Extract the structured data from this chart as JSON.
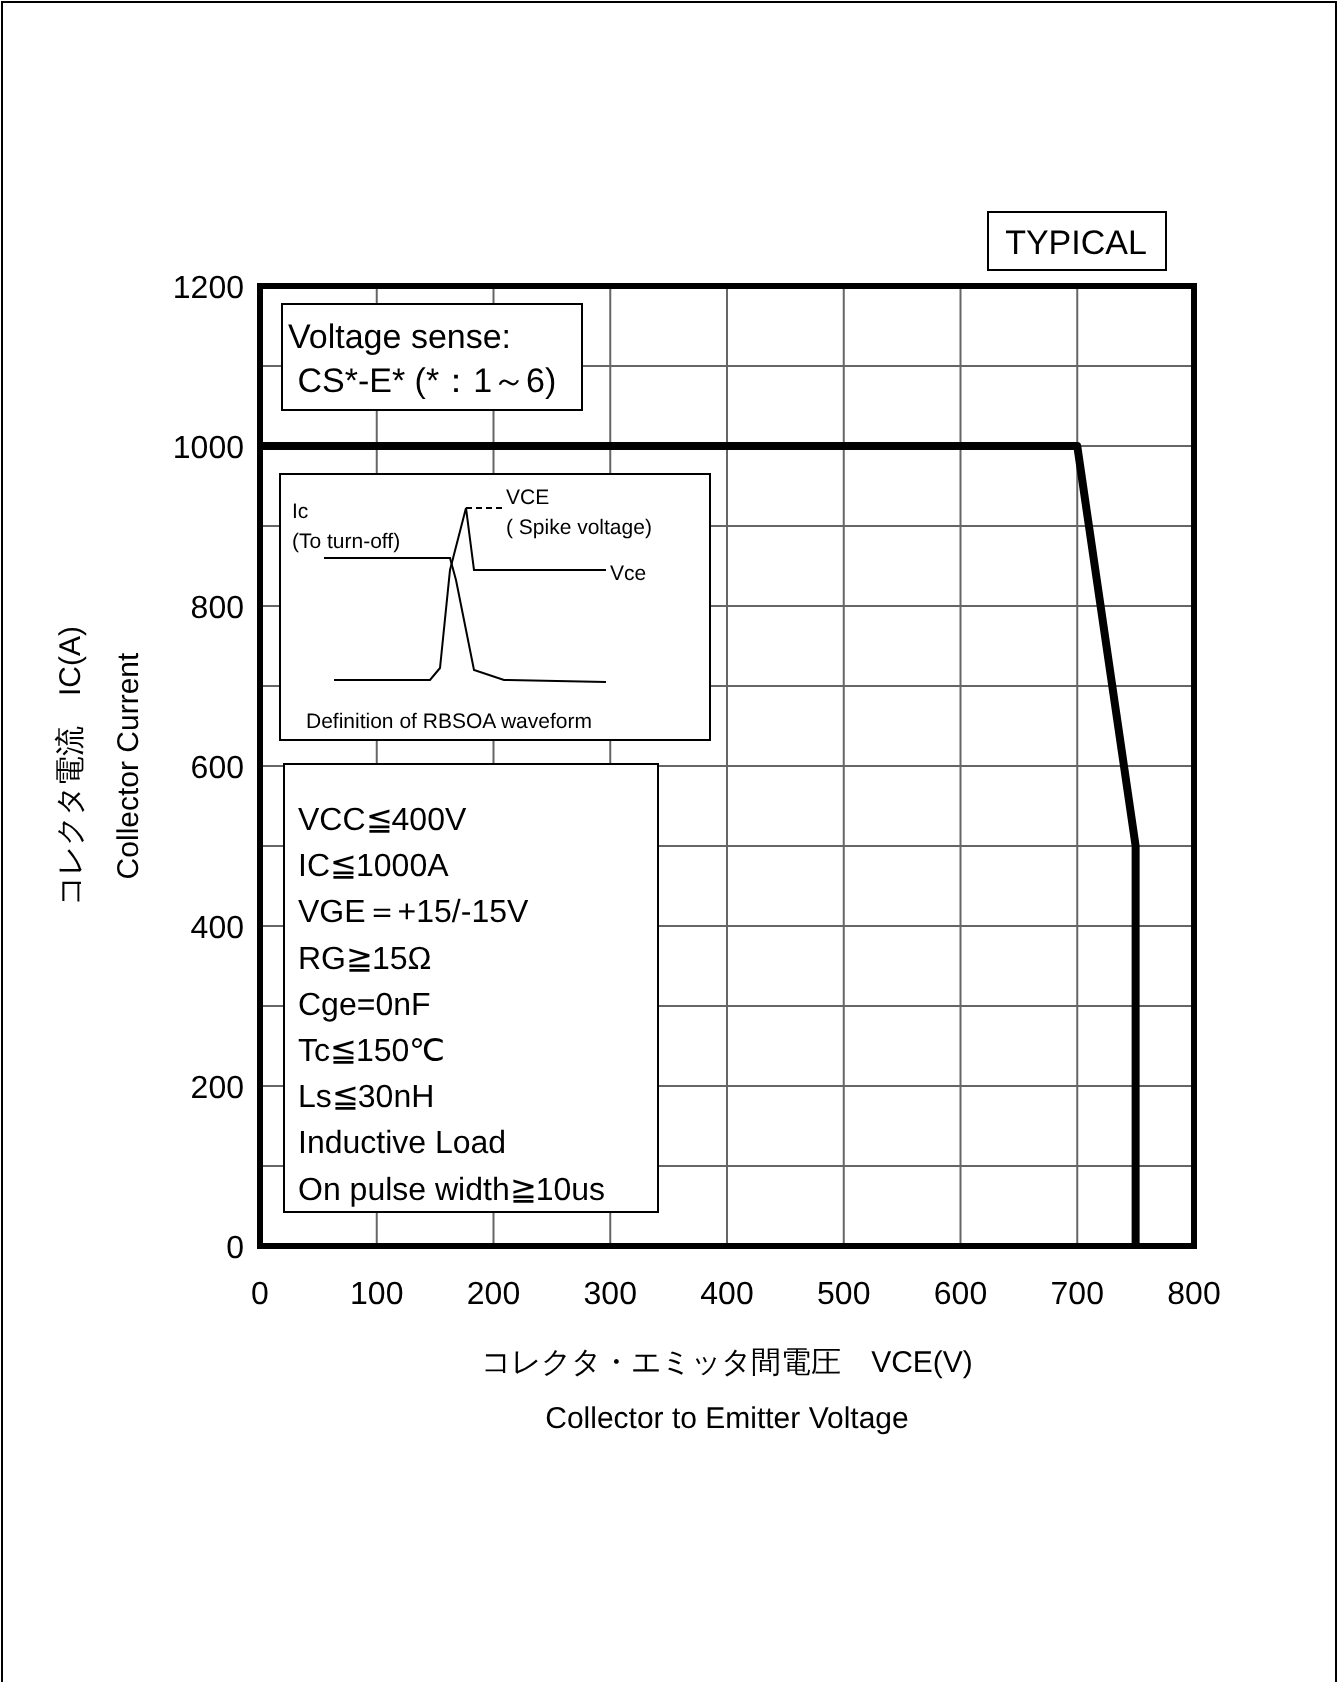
{
  "chart_data": {
    "type": "line",
    "xlabel": "コレクタ・エミッタ間電圧　VCE(V)\nCollector to Emitter Voltage",
    "ylabel": "コレクタ電流　IC(A)\nCollector Current",
    "x": [
      0,
      700,
      750,
      750
    ],
    "series": [
      {
        "color": "#000000",
        "values": [
          1000,
          1000,
          500,
          0
        ]
      }
    ],
    "xlim": [
      0,
      800
    ],
    "xticks": [
      0,
      100,
      200,
      300,
      400,
      500,
      600,
      700,
      800
    ],
    "ylim": [
      0,
      1200
    ],
    "yticks": [
      0,
      {
        "value": 100,
        "label": null
      },
      200,
      {
        "value": 300,
        "label": null
      },
      400,
      {
        "value": 500,
        "label": null
      },
      600,
      {
        "value": 700,
        "label": null
      },
      800,
      {
        "value": 900,
        "label": null
      },
      1000,
      {
        "value": 1100,
        "label": null
      },
      1200
    ],
    "grid": true,
    "annotations": [
      "TYPICAL",
      "Voltage sense:\n CS*-E* (*：1～6)",
      "Ic\n(To turn-off)",
      "VCE\n( Spike voltage)",
      "Vce",
      "Definition of RBSOA waveform",
      "VCC≦400V\nIC≦1000A\nVGE＝+15/-15V\nRG≧15Ω\nCge=0nF\nTc≦150℃\nLs≦30nH\nInductive Load\nOn pulse width≧10us"
    ]
  }
}
